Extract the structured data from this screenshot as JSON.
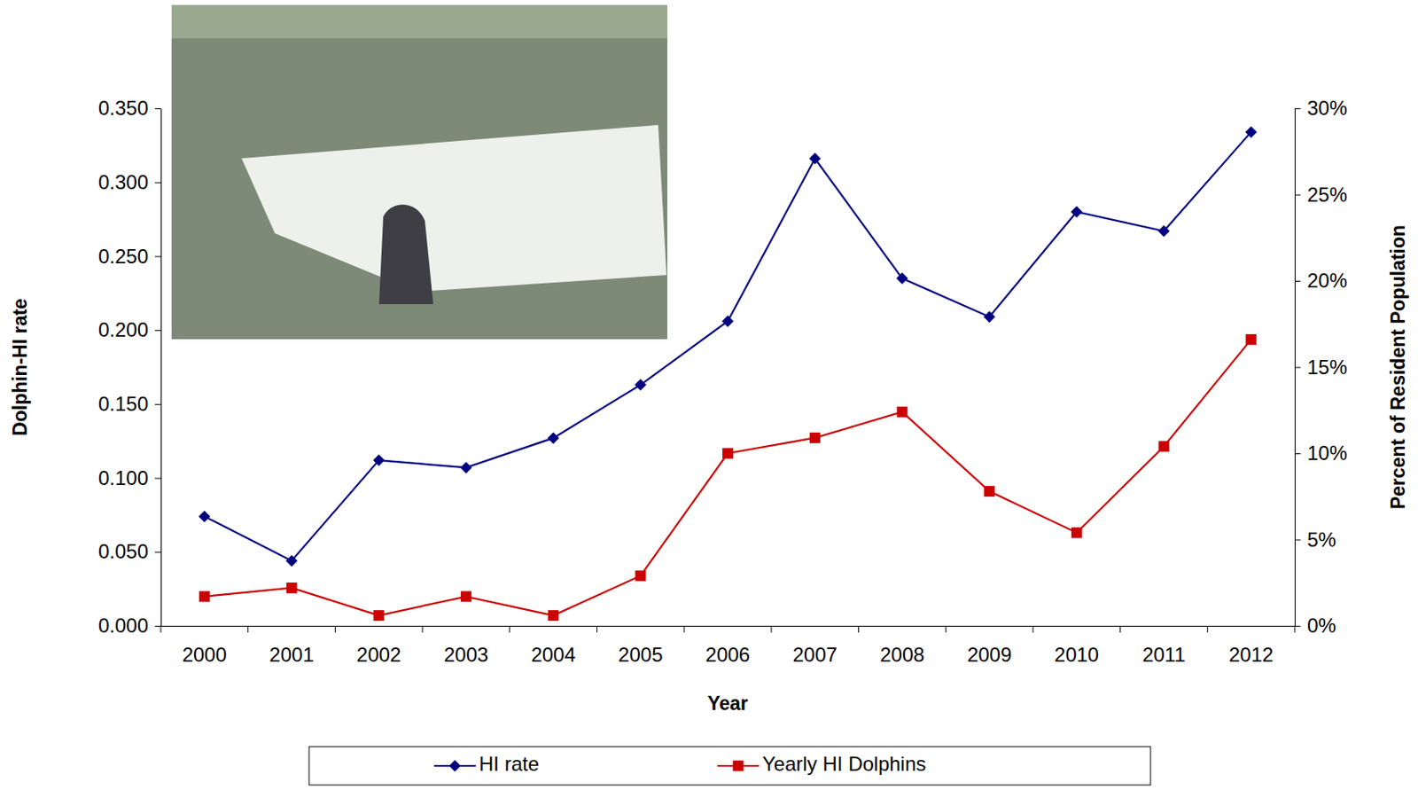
{
  "chart_data": {
    "type": "line",
    "x_label": "Year",
    "y_label": "Dolphin-HI rate",
    "y2_label": "Percent of Resident Population",
    "categories": [
      "2000",
      "2001",
      "2002",
      "2003",
      "2004",
      "2005",
      "2006",
      "2007",
      "2008",
      "2009",
      "2010",
      "2011",
      "2012"
    ],
    "series": [
      {
        "name": "HI rate",
        "color": "#000080",
        "marker": "diamond",
        "line_style": "solid",
        "values": [
          0.074,
          0.044,
          0.112,
          0.107,
          0.127,
          0.163,
          0.206,
          0.316,
          0.235,
          0.209,
          0.28,
          0.267,
          0.334
        ]
      },
      {
        "name": "Yearly HI Dolphins",
        "color": "#cc0000",
        "marker": "square",
        "line_style": "solid",
        "axis": "y2",
        "values": [
          1.7,
          2.2,
          0.6,
          1.7,
          0.6,
          2.9,
          10.0,
          10.9,
          12.4,
          7.8,
          5.4,
          10.4,
          16.6
        ]
      }
    ],
    "ylim": [
      0,
      0.35
    ],
    "yticks": [
      {
        "value": 0,
        "label": "0.000"
      },
      {
        "value": 0.05,
        "label": "0.050"
      },
      {
        "value": 0.1,
        "label": "0.100"
      },
      {
        "value": 0.15,
        "label": "0.150"
      },
      {
        "value": 0.2,
        "label": "0.200"
      },
      {
        "value": 0.25,
        "label": "0.250"
      },
      {
        "value": 0.3,
        "label": "0.300"
      },
      {
        "value": 0.35,
        "label": "0.350"
      }
    ],
    "y2lim": [
      0,
      30
    ],
    "y2ticks": [
      {
        "value": 0,
        "label": "0%"
      },
      {
        "value": 5,
        "label": "5%"
      },
      {
        "value": 10,
        "label": "10%"
      },
      {
        "value": 15,
        "label": "15%"
      },
      {
        "value": 20,
        "label": "20%"
      },
      {
        "value": 25,
        "label": "25%"
      },
      {
        "value": 30,
        "label": "30%"
      }
    ],
    "grid": false,
    "legend": "bottom"
  }
}
